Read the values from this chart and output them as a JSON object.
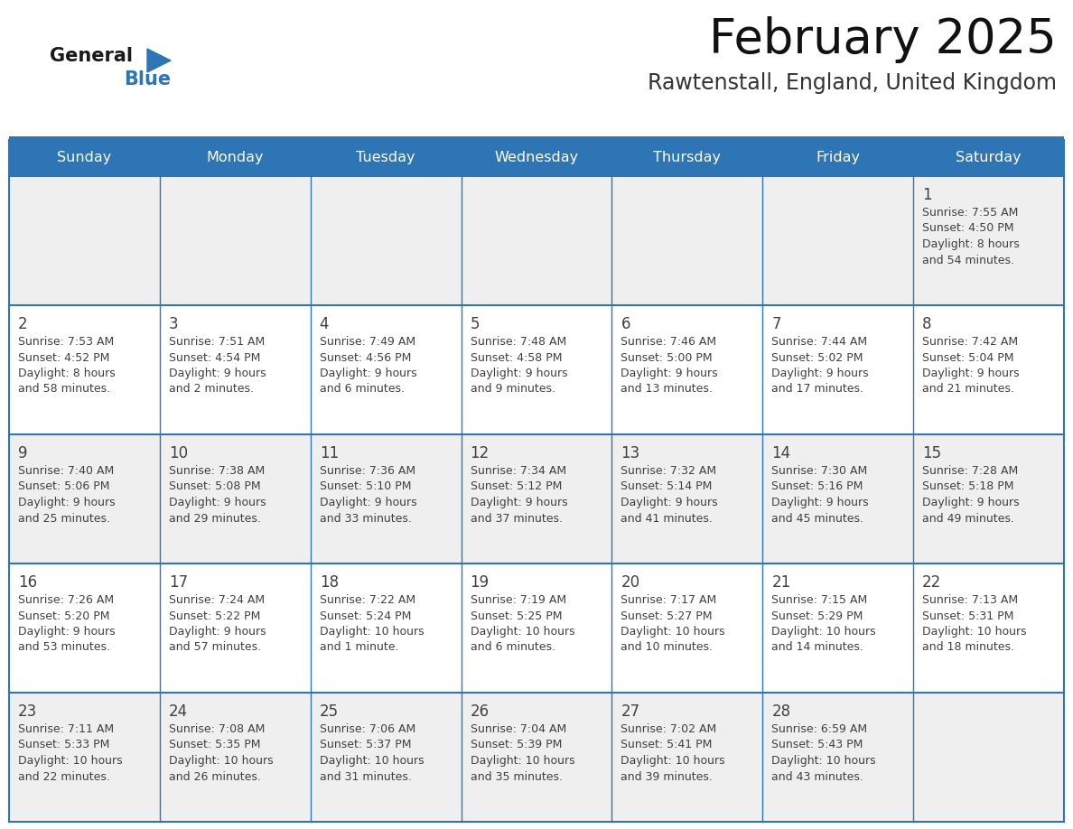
{
  "title": "February 2025",
  "subtitle": "Rawtenstall, England, United Kingdom",
  "days_of_week": [
    "Sunday",
    "Monday",
    "Tuesday",
    "Wednesday",
    "Thursday",
    "Friday",
    "Saturday"
  ],
  "header_bg_color": "#2E75B6",
  "header_text_color": "#FFFFFF",
  "row_bg_odd": "#EFEFEF",
  "row_bg_even": "#FFFFFF",
  "border_color": "#2E75B6",
  "day_number_color": "#404040",
  "text_color": "#404040",
  "title_color": "#111111",
  "subtitle_color": "#333333",
  "logo_general_color": "#1a1a1a",
  "logo_blue_color": "#2E75B6",
  "weeks": [
    [
      {
        "day": null,
        "info": ""
      },
      {
        "day": null,
        "info": ""
      },
      {
        "day": null,
        "info": ""
      },
      {
        "day": null,
        "info": ""
      },
      {
        "day": null,
        "info": ""
      },
      {
        "day": null,
        "info": ""
      },
      {
        "day": 1,
        "info": "Sunrise: 7:55 AM\nSunset: 4:50 PM\nDaylight: 8 hours\nand 54 minutes."
      }
    ],
    [
      {
        "day": 2,
        "info": "Sunrise: 7:53 AM\nSunset: 4:52 PM\nDaylight: 8 hours\nand 58 minutes."
      },
      {
        "day": 3,
        "info": "Sunrise: 7:51 AM\nSunset: 4:54 PM\nDaylight: 9 hours\nand 2 minutes."
      },
      {
        "day": 4,
        "info": "Sunrise: 7:49 AM\nSunset: 4:56 PM\nDaylight: 9 hours\nand 6 minutes."
      },
      {
        "day": 5,
        "info": "Sunrise: 7:48 AM\nSunset: 4:58 PM\nDaylight: 9 hours\nand 9 minutes."
      },
      {
        "day": 6,
        "info": "Sunrise: 7:46 AM\nSunset: 5:00 PM\nDaylight: 9 hours\nand 13 minutes."
      },
      {
        "day": 7,
        "info": "Sunrise: 7:44 AM\nSunset: 5:02 PM\nDaylight: 9 hours\nand 17 minutes."
      },
      {
        "day": 8,
        "info": "Sunrise: 7:42 AM\nSunset: 5:04 PM\nDaylight: 9 hours\nand 21 minutes."
      }
    ],
    [
      {
        "day": 9,
        "info": "Sunrise: 7:40 AM\nSunset: 5:06 PM\nDaylight: 9 hours\nand 25 minutes."
      },
      {
        "day": 10,
        "info": "Sunrise: 7:38 AM\nSunset: 5:08 PM\nDaylight: 9 hours\nand 29 minutes."
      },
      {
        "day": 11,
        "info": "Sunrise: 7:36 AM\nSunset: 5:10 PM\nDaylight: 9 hours\nand 33 minutes."
      },
      {
        "day": 12,
        "info": "Sunrise: 7:34 AM\nSunset: 5:12 PM\nDaylight: 9 hours\nand 37 minutes."
      },
      {
        "day": 13,
        "info": "Sunrise: 7:32 AM\nSunset: 5:14 PM\nDaylight: 9 hours\nand 41 minutes."
      },
      {
        "day": 14,
        "info": "Sunrise: 7:30 AM\nSunset: 5:16 PM\nDaylight: 9 hours\nand 45 minutes."
      },
      {
        "day": 15,
        "info": "Sunrise: 7:28 AM\nSunset: 5:18 PM\nDaylight: 9 hours\nand 49 minutes."
      }
    ],
    [
      {
        "day": 16,
        "info": "Sunrise: 7:26 AM\nSunset: 5:20 PM\nDaylight: 9 hours\nand 53 minutes."
      },
      {
        "day": 17,
        "info": "Sunrise: 7:24 AM\nSunset: 5:22 PM\nDaylight: 9 hours\nand 57 minutes."
      },
      {
        "day": 18,
        "info": "Sunrise: 7:22 AM\nSunset: 5:24 PM\nDaylight: 10 hours\nand 1 minute."
      },
      {
        "day": 19,
        "info": "Sunrise: 7:19 AM\nSunset: 5:25 PM\nDaylight: 10 hours\nand 6 minutes."
      },
      {
        "day": 20,
        "info": "Sunrise: 7:17 AM\nSunset: 5:27 PM\nDaylight: 10 hours\nand 10 minutes."
      },
      {
        "day": 21,
        "info": "Sunrise: 7:15 AM\nSunset: 5:29 PM\nDaylight: 10 hours\nand 14 minutes."
      },
      {
        "day": 22,
        "info": "Sunrise: 7:13 AM\nSunset: 5:31 PM\nDaylight: 10 hours\nand 18 minutes."
      }
    ],
    [
      {
        "day": 23,
        "info": "Sunrise: 7:11 AM\nSunset: 5:33 PM\nDaylight: 10 hours\nand 22 minutes."
      },
      {
        "day": 24,
        "info": "Sunrise: 7:08 AM\nSunset: 5:35 PM\nDaylight: 10 hours\nand 26 minutes."
      },
      {
        "day": 25,
        "info": "Sunrise: 7:06 AM\nSunset: 5:37 PM\nDaylight: 10 hours\nand 31 minutes."
      },
      {
        "day": 26,
        "info": "Sunrise: 7:04 AM\nSunset: 5:39 PM\nDaylight: 10 hours\nand 35 minutes."
      },
      {
        "day": 27,
        "info": "Sunrise: 7:02 AM\nSunset: 5:41 PM\nDaylight: 10 hours\nand 39 minutes."
      },
      {
        "day": 28,
        "info": "Sunrise: 6:59 AM\nSunset: 5:43 PM\nDaylight: 10 hours\nand 43 minutes."
      },
      {
        "day": null,
        "info": ""
      }
    ]
  ]
}
